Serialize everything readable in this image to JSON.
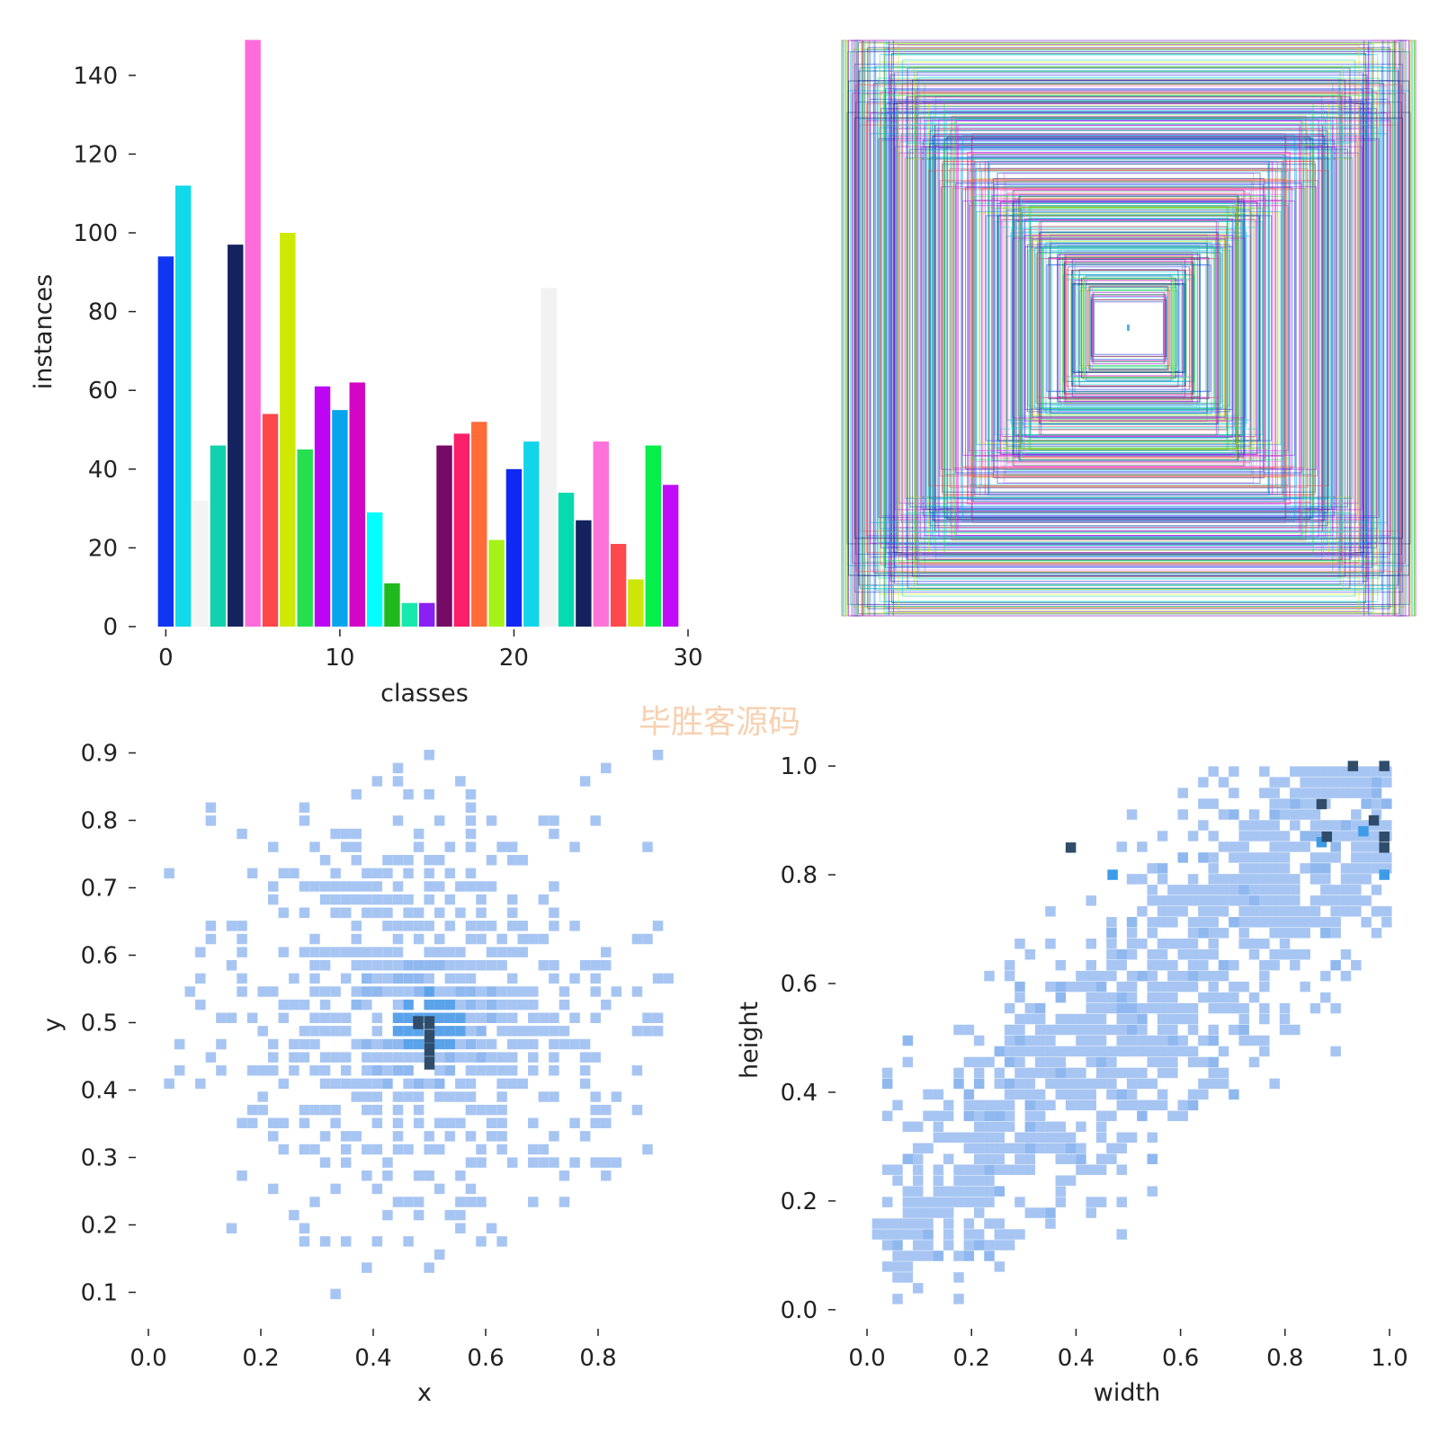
{
  "watermark": "毕胜客源码",
  "chart_data": [
    {
      "id": "class-histogram",
      "type": "bar",
      "xlabel": "classes",
      "ylabel": "instances",
      "xlim": [
        -1,
        30
      ],
      "ylim": [
        0,
        150
      ],
      "xticks": [
        0,
        10,
        20,
        30
      ],
      "yticks": [
        0,
        20,
        40,
        60,
        80,
        100,
        120,
        140
      ],
      "categories": [
        0,
        1,
        2,
        3,
        4,
        5,
        6,
        7,
        8,
        9,
        10,
        11,
        12,
        13,
        14,
        15,
        16,
        17,
        18,
        19,
        20,
        21,
        22,
        23,
        24,
        25,
        26,
        27,
        28,
        29
      ],
      "values": [
        94,
        112,
        32,
        46,
        97,
        149,
        54,
        100,
        45,
        61,
        55,
        62,
        29,
        11,
        6,
        6,
        46,
        49,
        52,
        22,
        40,
        47,
        86,
        34,
        27,
        47,
        21,
        12,
        46,
        36
      ],
      "colors": [
        "#0f36f2",
        "#12d9ea",
        "#f4f4f4",
        "#12d2ad",
        "#14225e",
        "#ff6cd9",
        "#fd474b",
        "#cde904",
        "#26df4f",
        "#bd04f3",
        "#07a6ec",
        "#d306c5",
        "#00ffff",
        "#20b91e",
        "#17e8ae",
        "#8b20f3",
        "#760a67",
        "#fb1f6a",
        "#ff6c38",
        "#a5f216",
        "#1028f3",
        "#12d5ea",
        "#f2f2f2",
        "#06dbb0",
        "#14225e",
        "#ff72d9",
        "#ff494c",
        "#cde607",
        "#06ef49",
        "#c00cf7"
      ]
    },
    {
      "id": "box-overlay",
      "type": "rectangles",
      "palette": [
        "#1b2be0",
        "#17d9ea",
        "#ff6cd9",
        "#12d2ad",
        "#14225e",
        "#bd04f3",
        "#07a6ec",
        "#26df4f",
        "#cde904",
        "#fd474b"
      ]
    },
    {
      "id": "xy-heatmap",
      "type": "heatmap",
      "xlabel": "x",
      "ylabel": "y",
      "xlim": [
        0,
        0.96
      ],
      "ylim": [
        0.07,
        0.93
      ],
      "xticks": [
        0.0,
        0.2,
        0.4,
        0.6,
        0.8
      ],
      "xtick_labels": [
        "0.0",
        "0.2",
        "0.4",
        "0.6",
        "0.8"
      ],
      "yticks": [
        0.1,
        0.2,
        0.3,
        0.4,
        0.5,
        0.6,
        0.7,
        0.8,
        0.9
      ],
      "ytick_labels": [
        "0.1",
        "0.2",
        "0.3",
        "0.4",
        "0.5",
        "0.6",
        "0.7",
        "0.8",
        "0.9"
      ],
      "center": [
        0.5,
        0.5
      ],
      "spread": [
        0.15,
        0.12
      ],
      "hot_cells": [
        [
          0.5,
          0.5
        ],
        [
          0.5,
          0.48
        ],
        [
          0.5,
          0.46
        ],
        [
          0.5,
          0.44
        ],
        [
          0.48,
          0.5
        ]
      ]
    },
    {
      "id": "wh-heatmap",
      "type": "heatmap",
      "xlabel": "width",
      "ylabel": "height",
      "xlim": [
        -0.05,
        1.0
      ],
      "ylim": [
        -0.03,
        1.02
      ],
      "xticks": [
        0.0,
        0.2,
        0.4,
        0.6,
        0.8,
        1.0
      ],
      "xtick_labels": [
        "0.0",
        "0.2",
        "0.4",
        "0.6",
        "0.8",
        "1.0"
      ],
      "yticks": [
        0.0,
        0.2,
        0.4,
        0.6,
        0.8,
        1.0
      ],
      "ytick_labels": [
        "0.0",
        "0.2",
        "0.4",
        "0.6",
        "0.8",
        "1.0"
      ],
      "hot_cells": [
        [
          0.93,
          1.0
        ],
        [
          0.99,
          1.0
        ],
        [
          0.39,
          0.85
        ],
        [
          0.99,
          0.87
        ],
        [
          0.99,
          0.85
        ],
        [
          0.88,
          0.87
        ],
        [
          0.87,
          0.93
        ],
        [
          0.97,
          0.9
        ]
      ]
    }
  ]
}
